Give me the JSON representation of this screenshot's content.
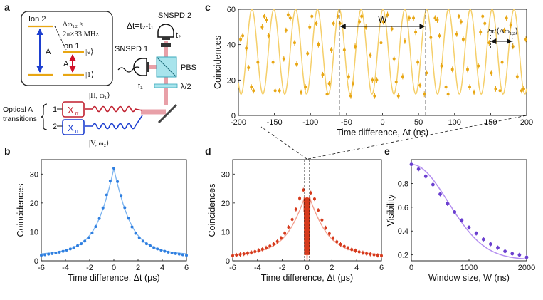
{
  "panel_labels": {
    "a": "a",
    "b": "b",
    "c": "c",
    "d": "d",
    "e": "e"
  },
  "schematic": {
    "ion2": "Ion 2",
    "ion1": "Ion 1",
    "delta_omega": "Δω₁₂ ≈",
    "delta_value": "2π×33 MHz",
    "ket_e": "|e⟩",
    "ket_1": "|1⟩",
    "transition_A_left": "A",
    "transition_A_right": "A",
    "delta_t_def": "Δt=t₂-t₁",
    "snspd1": "SNSPD 1",
    "snspd2": "SNSPD 2",
    "t1": "t₁",
    "t2": "t₂",
    "pbs": "PBS",
    "half_wave": "λ/2",
    "optical_line1": "Optical A",
    "optical_line2": "transitions",
    "line1": "1",
    "line2": "2",
    "xpi": "X",
    "xpi_sub": "π",
    "mode_H": "|H, ω₁⟩",
    "mode_V": "|V, ω₂⟩"
  },
  "colors": {
    "blue": "#2f7fe0",
    "orange": "#e8a613",
    "red": "#d63a1c",
    "purple": "#6a3fcf"
  },
  "chart_data": [
    {
      "id": "c",
      "type": "line",
      "xlabel": "Time difference, Δt (ns)",
      "ylabel": "Coincidences",
      "xlim": [
        -200,
        200
      ],
      "ylim": [
        0,
        60
      ],
      "xticks": [
        -200,
        -150,
        -100,
        -50,
        0,
        50,
        100,
        150,
        200
      ],
      "yticks": [
        0,
        20,
        40,
        60
      ],
      "model": {
        "mean": 36,
        "amplitude": 24,
        "period_ns": 30.3,
        "phase_ns": -60
      },
      "series": [
        {
          "name": "data",
          "x": [
            -197,
            -194,
            -189,
            -186,
            -182,
            -179,
            -173,
            -167,
            -164,
            -161,
            -158,
            -152,
            -149,
            -143,
            -137,
            -134,
            -131,
            -128,
            -122,
            -119,
            -113,
            -107,
            -104,
            -101,
            -98,
            -92,
            -89,
            -83,
            -77,
            -74,
            -71,
            -68,
            -62,
            -59,
            -53,
            -47,
            -44,
            -41,
            -38,
            -32,
            -29,
            -23,
            -17,
            -14,
            -11,
            -8,
            -2,
            1,
            7,
            13,
            16,
            19,
            22,
            28,
            31,
            37,
            43,
            46,
            49,
            52,
            58,
            61,
            67,
            73,
            76,
            79,
            82,
            88,
            91,
            97,
            103,
            106,
            109,
            112,
            118,
            121,
            127,
            133,
            136,
            139,
            142,
            148,
            151,
            157,
            163,
            166,
            169,
            172,
            178,
            181,
            187,
            193,
            196,
            199
          ],
          "y": [
            43,
            45,
            38,
            27,
            16,
            14,
            30,
            50,
            56,
            54,
            45,
            30,
            14,
            14,
            32,
            48,
            57,
            55,
            41,
            29,
            13,
            16,
            35,
            50,
            56,
            52,
            40,
            23,
            12,
            18,
            37,
            52,
            56,
            52,
            37,
            22,
            11,
            18,
            39,
            53,
            56,
            50,
            34,
            20,
            11,
            20,
            41,
            53,
            57,
            49,
            32,
            19,
            11,
            22,
            42,
            55,
            55,
            47,
            30,
            17,
            12,
            24,
            44,
            55,
            54,
            45,
            28,
            16,
            12,
            26,
            46,
            56,
            53,
            43,
            26,
            16,
            13,
            28,
            47,
            56,
            52,
            41,
            24,
            15,
            14,
            30,
            48,
            55,
            51,
            39,
            22,
            14,
            15,
            43
          ]
        }
      ],
      "annotations": {
        "window": "W",
        "period": "2π/⟨Δω₁₂⟩"
      }
    },
    {
      "id": "b",
      "type": "line",
      "xlabel": "Time difference, Δt (μs)",
      "ylabel": "Coincidences",
      "xlim": [
        -6,
        6
      ],
      "ylim": [
        0,
        35
      ],
      "xticks": [
        -6,
        -4,
        -2,
        0,
        2,
        4,
        6
      ],
      "yticks": [
        0,
        10,
        20,
        30
      ],
      "series": [
        {
          "name": "data",
          "x": [
            -6,
            -5.7,
            -5.4,
            -5.1,
            -4.8,
            -4.5,
            -4.2,
            -3.9,
            -3.6,
            -3.3,
            -3.0,
            -2.7,
            -2.4,
            -2.1,
            -1.8,
            -1.5,
            -1.2,
            -0.9,
            -0.6,
            -0.3,
            0,
            0.3,
            0.6,
            0.9,
            1.2,
            1.5,
            1.8,
            2.1,
            2.4,
            2.7,
            3.0,
            3.3,
            3.6,
            3.9,
            4.2,
            4.5,
            4.8,
            5.1,
            5.4,
            5.7,
            6
          ],
          "y": [
            1.9,
            2.1,
            2.3,
            2.5,
            2.7,
            3.0,
            3.3,
            3.7,
            4.1,
            4.6,
            5.2,
            5.9,
            6.8,
            8.0,
            9.6,
            11.8,
            14.6,
            18.3,
            22.8,
            27.6,
            32.0,
            27.4,
            22.6,
            18.4,
            14.7,
            11.7,
            9.5,
            8.0,
            6.8,
            5.9,
            5.2,
            4.6,
            4.1,
            3.7,
            3.3,
            3.0,
            2.7,
            2.5,
            2.3,
            2.1,
            1.9
          ]
        }
      ]
    },
    {
      "id": "d",
      "type": "line",
      "xlabel": "Time difference, Δt (μs)",
      "ylabel": "Coincidences",
      "xlim": [
        -6,
        6
      ],
      "ylim": [
        0,
        35
      ],
      "xticks": [
        -6,
        -4,
        -2,
        0,
        2,
        4,
        6
      ],
      "yticks": [
        0,
        10,
        20,
        30
      ],
      "series": [
        {
          "name": "data",
          "x": [
            -6,
            -5.7,
            -5.4,
            -5.1,
            -4.8,
            -4.5,
            -4.2,
            -3.9,
            -3.6,
            -3.3,
            -3.0,
            -2.7,
            -2.4,
            -2.1,
            -1.8,
            -1.5,
            -1.2,
            -0.9,
            -0.6,
            -0.3,
            -0.1,
            0.1,
            0.3,
            0.6,
            0.9,
            1.2,
            1.5,
            1.8,
            2.1,
            2.4,
            2.7,
            3.0,
            3.3,
            3.6,
            3.9,
            4.2,
            4.5,
            4.8,
            5.1,
            5.4,
            5.7,
            6
          ],
          "y": [
            1.8,
            2.0,
            2.2,
            2.4,
            2.6,
            2.9,
            3.2,
            3.6,
            4.0,
            4.5,
            5.1,
            5.8,
            6.7,
            7.9,
            9.5,
            11.6,
            14.3,
            17.8,
            21.6,
            24.5,
            10,
            9,
            23.5,
            21.4,
            17.5,
            14.1,
            11.4,
            9.4,
            7.8,
            6.6,
            5.7,
            5.0,
            4.4,
            3.9,
            3.5,
            3.1,
            2.8,
            2.5,
            2.3,
            2.1,
            1.9,
            1.8
          ]
        }
      ]
    },
    {
      "id": "e",
      "type": "scatter",
      "xlabel": "Window size, W (ns)",
      "ylabel": "Visibility",
      "xlim": [
        0,
        2000
      ],
      "ylim": [
        0.15,
        1.0
      ],
      "xticks": [
        0,
        1000,
        2000
      ],
      "yticks": [
        0.2,
        0.4,
        0.6,
        0.8
      ],
      "series": [
        {
          "name": "data",
          "x": [
            0,
            125,
            250,
            375,
            500,
            625,
            750,
            875,
            1000,
            1125,
            1250,
            1375,
            1500,
            1625,
            1750,
            1875,
            2000
          ],
          "y": [
            0.96,
            0.92,
            0.86,
            0.79,
            0.71,
            0.63,
            0.56,
            0.49,
            0.43,
            0.38,
            0.33,
            0.29,
            0.26,
            0.23,
            0.21,
            0.2,
            0.18
          ]
        }
      ]
    }
  ]
}
